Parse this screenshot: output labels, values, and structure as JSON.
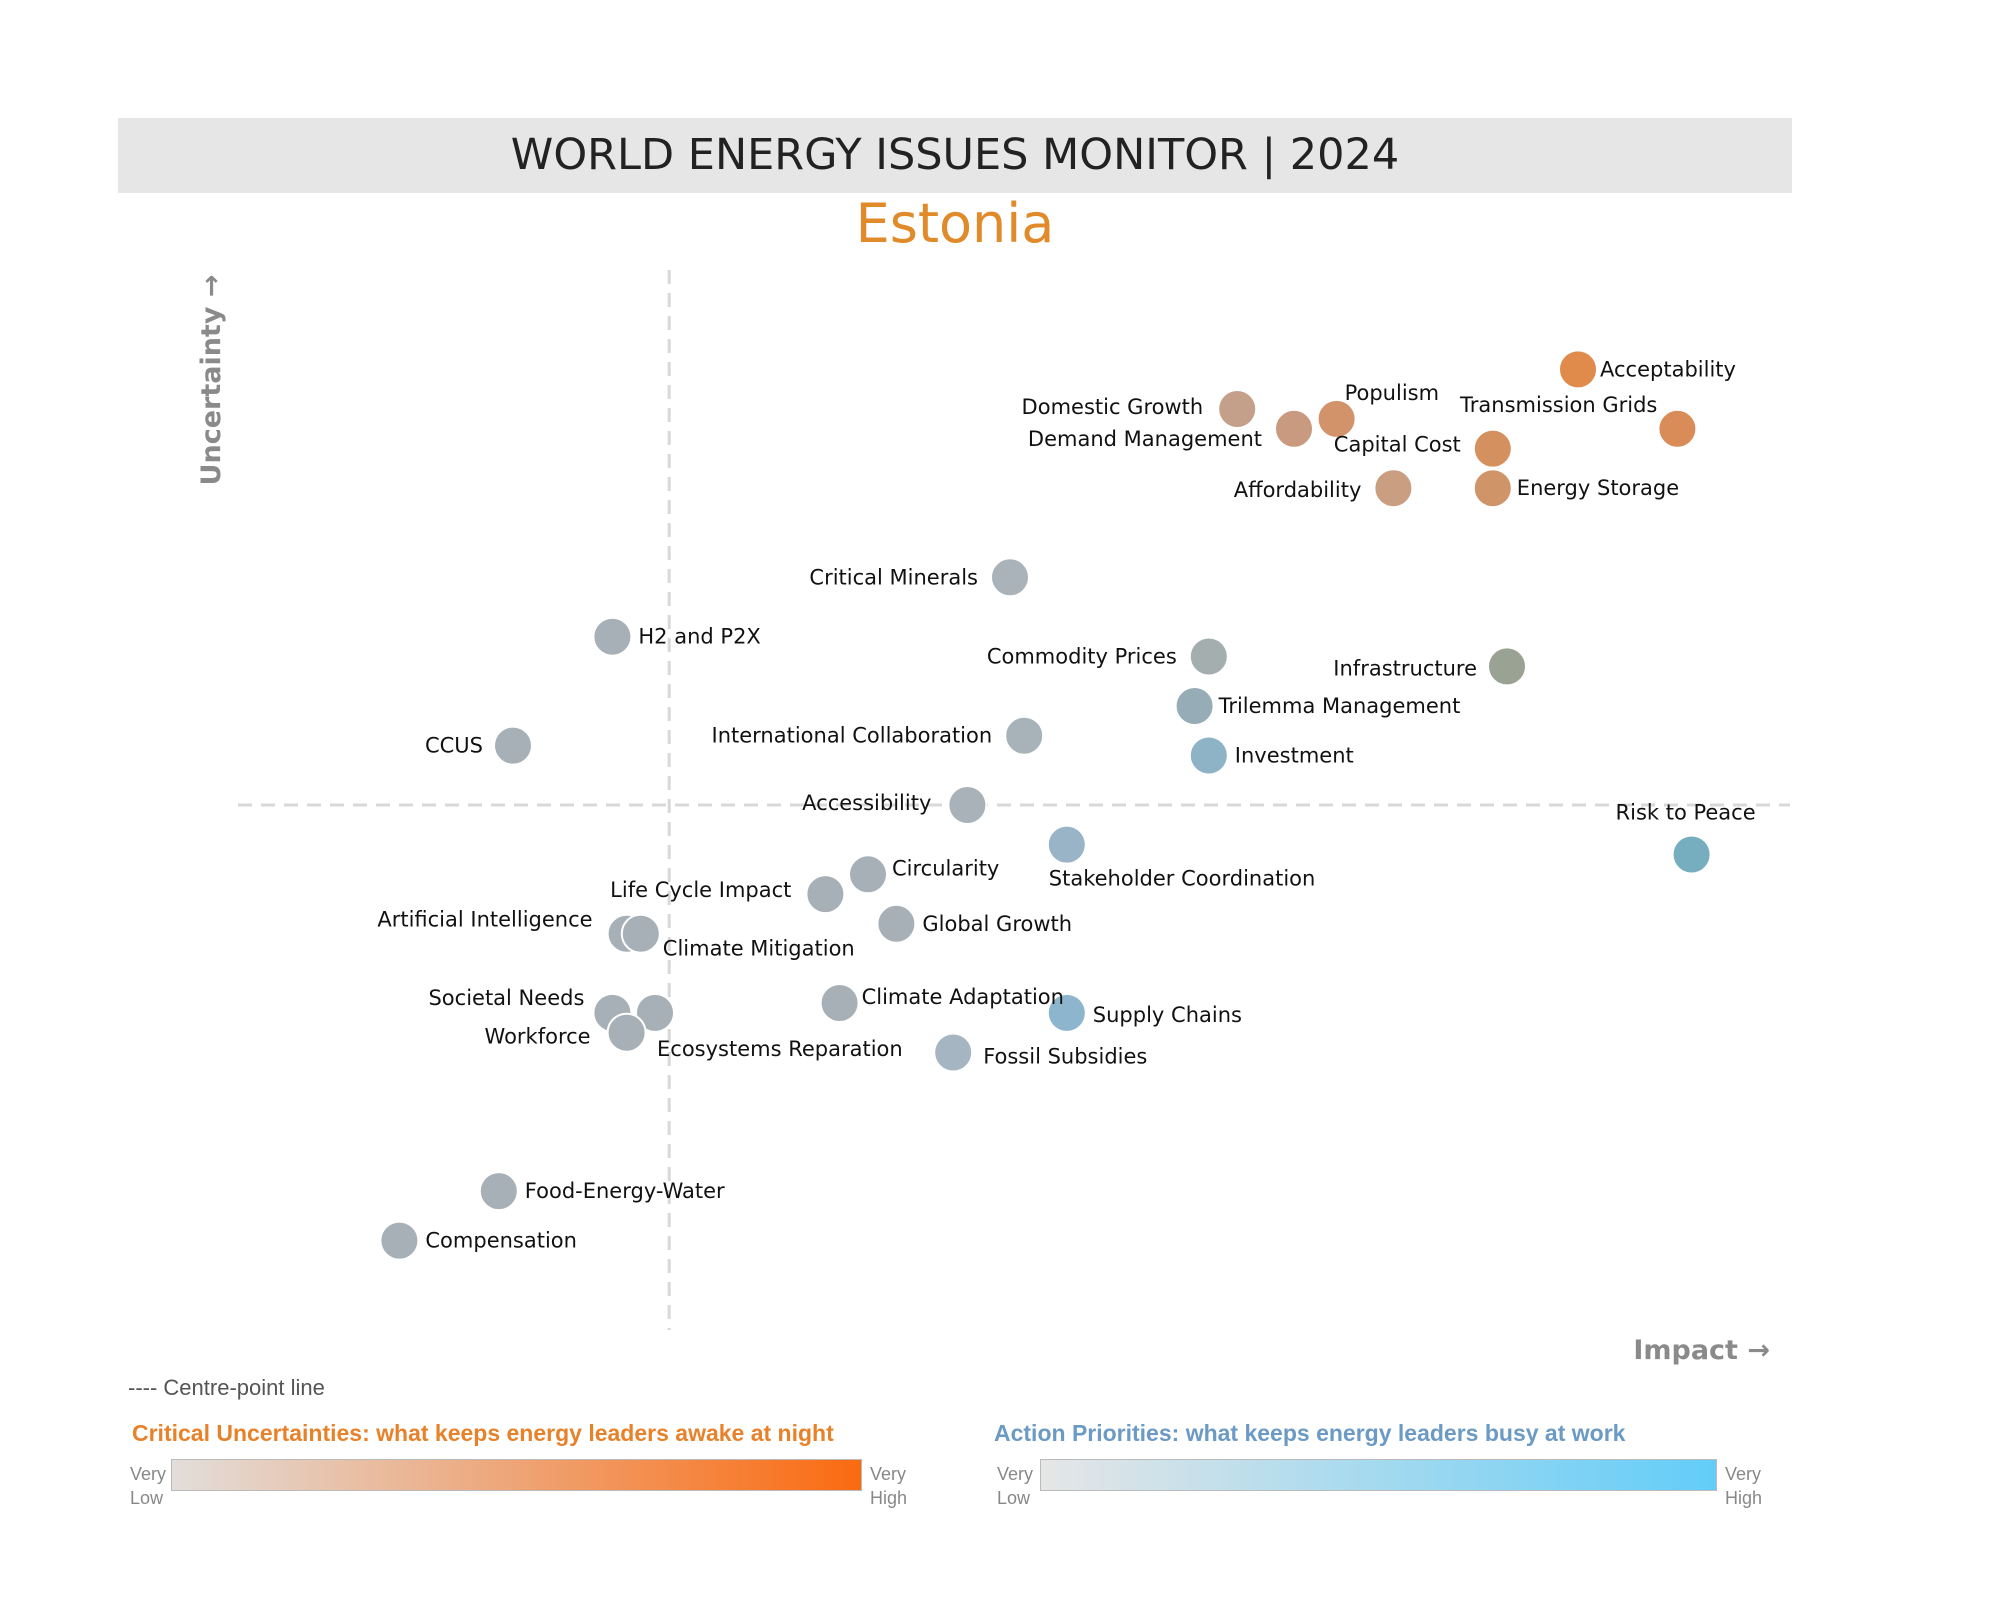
{
  "header": {
    "title": "WORLD ENERGY ISSUES MONITOR | 2024",
    "subtitle": "Estonia"
  },
  "chart_data": {
    "type": "scatter",
    "title": "WORLD ENERGY ISSUES MONITOR | 2024",
    "subtitle": "Estonia",
    "xlabel": "Impact →",
    "ylabel": "Uncertainty →",
    "xlim": [
      0,
      100
    ],
    "ylim": [
      0,
      100
    ],
    "centre_x": 26,
    "centre_y": 50,
    "grid": false,
    "points": [
      {
        "label": "Acceptability",
        "x": 90,
        "y": 94,
        "color": "#e08a4c"
      },
      {
        "label": "Transmission Grids",
        "x": 97,
        "y": 88,
        "color": "#d98c58"
      },
      {
        "label": "Populism",
        "x": 73,
        "y": 89,
        "color": "#d3936a"
      },
      {
        "label": "Domestic Growth",
        "x": 66,
        "y": 90,
        "color": "#c4a08a"
      },
      {
        "label": "Demand Management",
        "x": 70,
        "y": 88,
        "color": "#c99a80"
      },
      {
        "label": "Capital Cost",
        "x": 84,
        "y": 86,
        "color": "#d4915f"
      },
      {
        "label": "Energy Storage",
        "x": 84,
        "y": 82,
        "color": "#d09469"
      },
      {
        "label": "Affordability",
        "x": 77,
        "y": 82,
        "color": "#c99e81"
      },
      {
        "label": "Critical Minerals",
        "x": 50,
        "y": 73,
        "color": "#aab3ba"
      },
      {
        "label": "H2 and P2X",
        "x": 22,
        "y": 67,
        "color": "#a8b0b7"
      },
      {
        "label": "Commodity Prices",
        "x": 64,
        "y": 65,
        "color": "#a5aeae"
      },
      {
        "label": "Infrastructure",
        "x": 85,
        "y": 64,
        "color": "#9aa293"
      },
      {
        "label": "Trilemma Management",
        "x": 63,
        "y": 60,
        "color": "#96acb7"
      },
      {
        "label": "International Collaboration",
        "x": 51,
        "y": 57,
        "color": "#a8b2b9"
      },
      {
        "label": "CCUS",
        "x": 15,
        "y": 56,
        "color": "#a8b0b7"
      },
      {
        "label": "Investment",
        "x": 64,
        "y": 55,
        "color": "#8eb3c6"
      },
      {
        "label": "Accessibility",
        "x": 47,
        "y": 50,
        "color": "#a9b2b9"
      },
      {
        "label": "Risk to Peace",
        "x": 98,
        "y": 45,
        "color": "#77aebf"
      },
      {
        "label": "Stakeholder Coordination",
        "x": 54,
        "y": 46,
        "color": "#99b4c6"
      },
      {
        "label": "Circularity",
        "x": 40,
        "y": 43,
        "color": "#a8b0b7"
      },
      {
        "label": "Life Cycle Impact",
        "x": 37,
        "y": 41,
        "color": "#a8b0b7"
      },
      {
        "label": "Global Growth",
        "x": 42,
        "y": 38,
        "color": "#a8b0b7"
      },
      {
        "label": "Artificial Intelligence",
        "x": 23,
        "y": 37,
        "color": "#a8b0b7"
      },
      {
        "label": "Climate Mitigation",
        "x": 24,
        "y": 37,
        "color": "#a8b0b7"
      },
      {
        "label": "Climate Adaptation",
        "x": 38,
        "y": 30,
        "color": "#a8b0b7"
      },
      {
        "label": "Supply Chains",
        "x": 54,
        "y": 29,
        "color": "#8db6ce"
      },
      {
        "label": "Societal Needs",
        "x": 22,
        "y": 29,
        "color": "#a8b0b7"
      },
      {
        "label": "Ecosystems Reparation",
        "x": 25,
        "y": 29,
        "color": "#a8b0b7"
      },
      {
        "label": "Workforce",
        "x": 23,
        "y": 27,
        "color": "#a8b0b7"
      },
      {
        "label": "Fossil Subsidies",
        "x": 46,
        "y": 25,
        "color": "#a5b5c2"
      },
      {
        "label": "Food-Energy-Water",
        "x": 14,
        "y": 11,
        "color": "#a8b0b7"
      },
      {
        "label": "Compensation",
        "x": 7,
        "y": 6,
        "color": "#a8b0b7"
      }
    ],
    "centre_line_note": "---- Centre-point line",
    "legends": [
      {
        "title": "Critical Uncertainties: what keeps energy leaders awake at night",
        "low_label": [
          "Very",
          "Low"
        ],
        "high_label": [
          "Very",
          "High"
        ],
        "color_low": "#e2dedb",
        "color_high": "#fb6a10"
      },
      {
        "title": "Action Priorities: what keeps energy leaders busy at work",
        "low_label": [
          "Very",
          "Low"
        ],
        "high_label": [
          "Very",
          "High"
        ],
        "color_low": "#e6e6e6",
        "color_high": "#62cdf8"
      }
    ]
  }
}
